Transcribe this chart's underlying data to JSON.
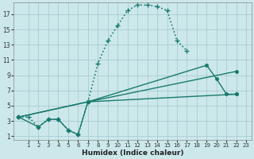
{
  "xlabel": "Humidex (Indice chaleur)",
  "background_color": "#cce8ea",
  "grid_color": "#aacdd0",
  "line_color": "#1a7a6e",
  "xlim": [
    -0.5,
    23.5
  ],
  "ylim": [
    0.5,
    18.5
  ],
  "xticks": [
    1,
    2,
    3,
    4,
    5,
    6,
    7,
    8,
    9,
    10,
    11,
    12,
    13,
    14,
    15,
    16,
    17,
    18,
    19,
    20,
    21,
    22,
    23
  ],
  "yticks": [
    1,
    3,
    5,
    7,
    9,
    11,
    13,
    15,
    17
  ],
  "series": [
    {
      "x": [
        0,
        1,
        2,
        3,
        4,
        5,
        6,
        7,
        8,
        9,
        10,
        11,
        12,
        13,
        14,
        15,
        16,
        17
      ],
      "y": [
        3.5,
        3.5,
        2.2,
        3.2,
        3.2,
        1.8,
        1.2,
        5.5,
        10.5,
        13.5,
        15.5,
        17.5,
        18.2,
        18.2,
        18,
        17.5,
        13.5,
        12.2
      ],
      "style": ":",
      "marker": "+",
      "markersize": 5,
      "linewidth": 1.2
    },
    {
      "x": [
        0,
        2,
        3,
        4,
        5,
        6,
        7,
        19,
        20,
        21,
        22
      ],
      "y": [
        3.5,
        2.2,
        3.2,
        3.2,
        1.8,
        1.2,
        5.5,
        10.3,
        8.5,
        6.5,
        6.5
      ],
      "style": "-",
      "marker": "o",
      "markersize": 2.5,
      "linewidth": 1.0
    },
    {
      "x": [
        0,
        7,
        22
      ],
      "y": [
        3.5,
        5.5,
        6.5
      ],
      "style": "-",
      "marker": "o",
      "markersize": 2.5,
      "linewidth": 1.0
    },
    {
      "x": [
        0,
        7,
        22
      ],
      "y": [
        3.5,
        5.5,
        9.5
      ],
      "style": "-",
      "marker": "o",
      "markersize": 2.5,
      "linewidth": 1.0
    }
  ]
}
